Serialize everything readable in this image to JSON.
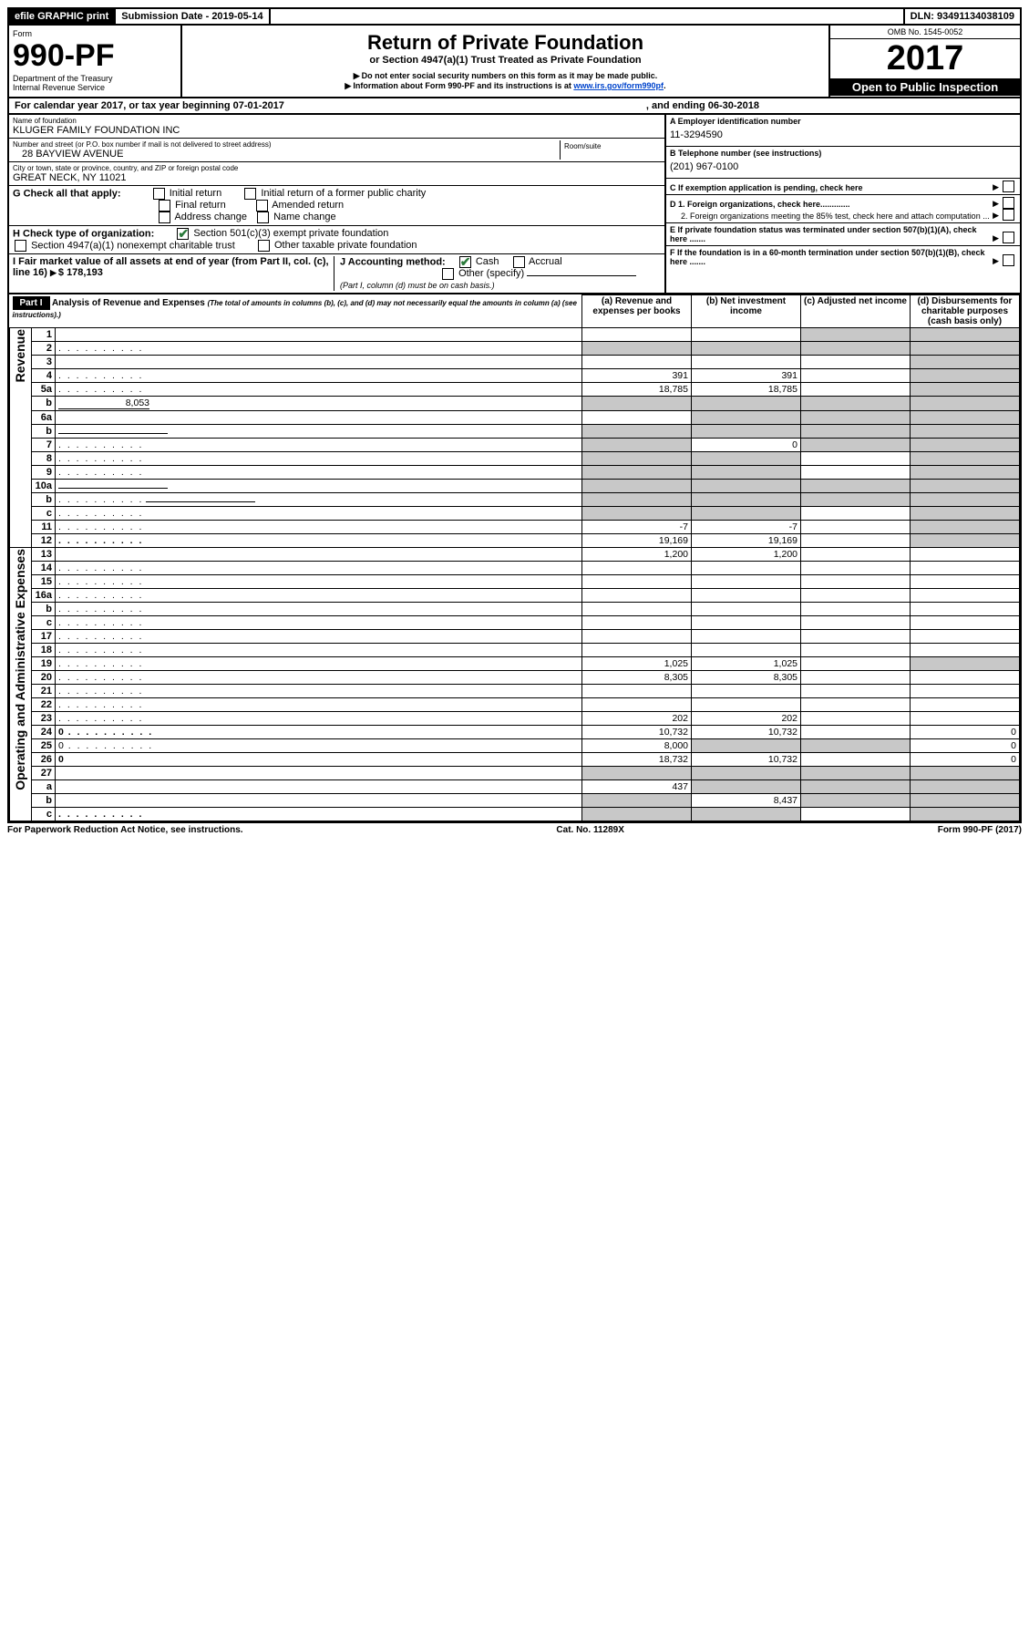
{
  "topbar": {
    "efile": "efile GRAPHIC print",
    "subdate_label": "Submission Date - 2019-05-14",
    "dln_label": "DLN: 93491134038109"
  },
  "formhdr": {
    "form_word": "Form",
    "form_no": "990-PF",
    "dept": "Department of the Treasury",
    "irs": "Internal Revenue Service",
    "title": "Return of Private Foundation",
    "subtitle": "or Section 4947(a)(1) Trust Treated as Private Foundation",
    "warn1": "Do not enter social security numbers on this form as it may be made public.",
    "warn2_pre": "Information about Form 990-PF and its instructions is at ",
    "warn2_link": "www.irs.gov/form990pf",
    "omb": "OMB No. 1545-0052",
    "year": "2017",
    "openpub": "Open to Public Inspection"
  },
  "cal": {
    "line": "For calendar year 2017, or tax year beginning 07-01-2017",
    "end": ", and ending 06-30-2018"
  },
  "ident": {
    "name_label": "Name of foundation",
    "name": "KLUGER FAMILY FOUNDATION INC",
    "ein_label": "A  Employer identification number",
    "ein": "11-3294590",
    "addr_label": "Number and street (or P.O. box number if mail is not delivered to street address)",
    "addr": "28 BAYVIEW AVENUE",
    "room_label": "Room/suite",
    "phone_label": "B  Telephone number (see instructions)",
    "phone": "(201) 967-0100",
    "city_label": "City or town, state or province, country, and ZIP or foreign postal code",
    "city": "GREAT NECK, NY  11021",
    "c_label": "C  If exemption application is pending, check here"
  },
  "g": {
    "label": "G  Check all that apply:",
    "o1": "Initial return",
    "o2": "Initial return of a former public charity",
    "o3": "Final return",
    "o4": "Amended return",
    "o5": "Address change",
    "o6": "Name change"
  },
  "d": {
    "d1": "D 1. Foreign organizations, check here.............",
    "d2": "2. Foreign organizations meeting the 85% test, check here and attach computation ..."
  },
  "h": {
    "label": "H  Check type of organization:",
    "o1": "Section 501(c)(3) exempt private foundation",
    "o2": "Section 4947(a)(1) nonexempt charitable trust",
    "o3": "Other taxable private foundation"
  },
  "e_label": "E  If private foundation status was terminated under section 507(b)(1)(A), check here .......",
  "i": {
    "label": "I  Fair market value of all assets at end of year (from Part II, col. (c), line 16)",
    "val": "$  178,193"
  },
  "j": {
    "label": "J Accounting method:",
    "cash": "Cash",
    "accrual": "Accrual",
    "other": "Other (specify)",
    "note": "(Part I, column (d) must be on cash basis.)"
  },
  "f_label": "F  If the foundation is in a 60-month termination under section 507(b)(1)(B), check here .......",
  "part1": {
    "tag": "Part I",
    "title": "Analysis of Revenue and Expenses",
    "sub": "(The total of amounts in columns (b), (c), and (d) may not necessarily equal the amounts in column (a) (see instructions).)",
    "col_a": "(a)   Revenue and expenses per books",
    "col_b": "(b)  Net investment income",
    "col_c": "(c)  Adjusted net income",
    "col_d": "(d)  Disbursements for charitable purposes (cash basis only)"
  },
  "vlab_rev": "Revenue",
  "vlab_exp": "Operating and Administrative Expenses",
  "rows": [
    {
      "n": "1",
      "d": "",
      "a": "",
      "b": "",
      "c": "",
      "gB": false,
      "gC": true,
      "gD": true
    },
    {
      "n": "2",
      "d": "",
      "dots": true,
      "a": "",
      "b": "",
      "c": "",
      "gA": true,
      "gB": true,
      "gC": true,
      "gD": true
    },
    {
      "n": "3",
      "d": "",
      "a": "",
      "b": "",
      "c": "",
      "gD": true
    },
    {
      "n": "4",
      "d": "",
      "dots": true,
      "a": "391",
      "b": "391",
      "c": "",
      "gD": true
    },
    {
      "n": "5a",
      "d": "",
      "dots": true,
      "a": "18,785",
      "b": "18,785",
      "c": "",
      "gD": true
    },
    {
      "n": "b",
      "d": "",
      "inset": "8,053",
      "a": "",
      "b": "",
      "c": "",
      "gA": true,
      "gB": true,
      "gC": true,
      "gD": true
    },
    {
      "n": "6a",
      "d": "",
      "a": "",
      "b": "",
      "c": "",
      "gB": true,
      "gC": true,
      "gD": true
    },
    {
      "n": "b",
      "d": "",
      "underline": true,
      "a": "",
      "b": "",
      "c": "",
      "gA": true,
      "gB": true,
      "gC": true,
      "gD": true
    },
    {
      "n": "7",
      "d": "",
      "dots": true,
      "a": "",
      "b": "0",
      "c": "",
      "gA": true,
      "gC": true,
      "gD": true
    },
    {
      "n": "8",
      "d": "",
      "dots": true,
      "a": "",
      "b": "",
      "c": "",
      "gA": true,
      "gB": true,
      "gD": true
    },
    {
      "n": "9",
      "d": "",
      "dots": true,
      "a": "",
      "b": "",
      "c": "",
      "gA": true,
      "gB": true,
      "gD": true
    },
    {
      "n": "10a",
      "d": "",
      "underline": true,
      "a": "",
      "b": "",
      "c": "",
      "gA": true,
      "gB": true,
      "gC": true,
      "gD": true
    },
    {
      "n": "b",
      "d": "",
      "dots": true,
      "underline": true,
      "a": "",
      "b": "",
      "c": "",
      "gA": true,
      "gB": true,
      "gC": true,
      "gD": true
    },
    {
      "n": "c",
      "d": "",
      "dots": true,
      "a": "",
      "b": "",
      "c": "",
      "gA": true,
      "gB": true,
      "gD": true
    },
    {
      "n": "11",
      "d": "",
      "dots": true,
      "a": "-7",
      "b": "-7",
      "c": "",
      "gD": true
    },
    {
      "n": "12",
      "d": "",
      "dots": true,
      "bold": true,
      "a": "19,169",
      "b": "19,169",
      "c": "",
      "gD": true
    },
    {
      "n": "13",
      "d": "",
      "a": "1,200",
      "b": "1,200",
      "c": ""
    },
    {
      "n": "14",
      "d": "",
      "dots": true,
      "a": "",
      "b": "",
      "c": ""
    },
    {
      "n": "15",
      "d": "",
      "dots": true,
      "a": "",
      "b": "",
      "c": ""
    },
    {
      "n": "16a",
      "d": "",
      "dots": true,
      "a": "",
      "b": "",
      "c": ""
    },
    {
      "n": "b",
      "d": "",
      "dots": true,
      "a": "",
      "b": "",
      "c": ""
    },
    {
      "n": "c",
      "d": "",
      "dots": true,
      "a": "",
      "b": "",
      "c": ""
    },
    {
      "n": "17",
      "d": "",
      "dots": true,
      "a": "",
      "b": "",
      "c": ""
    },
    {
      "n": "18",
      "d": "",
      "dots": true,
      "a": "",
      "b": "",
      "c": ""
    },
    {
      "n": "19",
      "d": "",
      "dots": true,
      "a": "1,025",
      "b": "1,025",
      "c": "",
      "gD": true
    },
    {
      "n": "20",
      "d": "",
      "dots": true,
      "a": "8,305",
      "b": "8,305",
      "c": ""
    },
    {
      "n": "21",
      "d": "",
      "dots": true,
      "a": "",
      "b": "",
      "c": ""
    },
    {
      "n": "22",
      "d": "",
      "dots": true,
      "a": "",
      "b": "",
      "c": ""
    },
    {
      "n": "23",
      "d": "",
      "dots": true,
      "a": "202",
      "b": "202",
      "c": ""
    },
    {
      "n": "24",
      "d": "0",
      "dots": true,
      "bold": true,
      "a": "10,732",
      "b": "10,732",
      "c": ""
    },
    {
      "n": "25",
      "d": "0",
      "dots": true,
      "a": "8,000",
      "b": "",
      "c": "",
      "gB": true,
      "gC": true
    },
    {
      "n": "26",
      "d": "0",
      "bold": true,
      "a": "18,732",
      "b": "10,732",
      "c": ""
    },
    {
      "n": "27",
      "d": "",
      "a": "",
      "b": "",
      "c": "",
      "gA": true,
      "gB": true,
      "gC": true,
      "gD": true
    },
    {
      "n": "a",
      "d": "",
      "bold": true,
      "a": "437",
      "b": "",
      "c": "",
      "gB": true,
      "gC": true,
      "gD": true
    },
    {
      "n": "b",
      "d": "",
      "bold": true,
      "a": "",
      "b": "8,437",
      "c": "",
      "gA": true,
      "gC": true,
      "gD": true
    },
    {
      "n": "c",
      "d": "",
      "dots": true,
      "bold": true,
      "a": "",
      "b": "",
      "c": "",
      "gA": true,
      "gB": true,
      "gD": true
    }
  ],
  "footer": {
    "left": "For Paperwork Reduction Act Notice, see instructions.",
    "mid": "Cat. No. 11289X",
    "right": "Form 990-PF (2017)"
  }
}
